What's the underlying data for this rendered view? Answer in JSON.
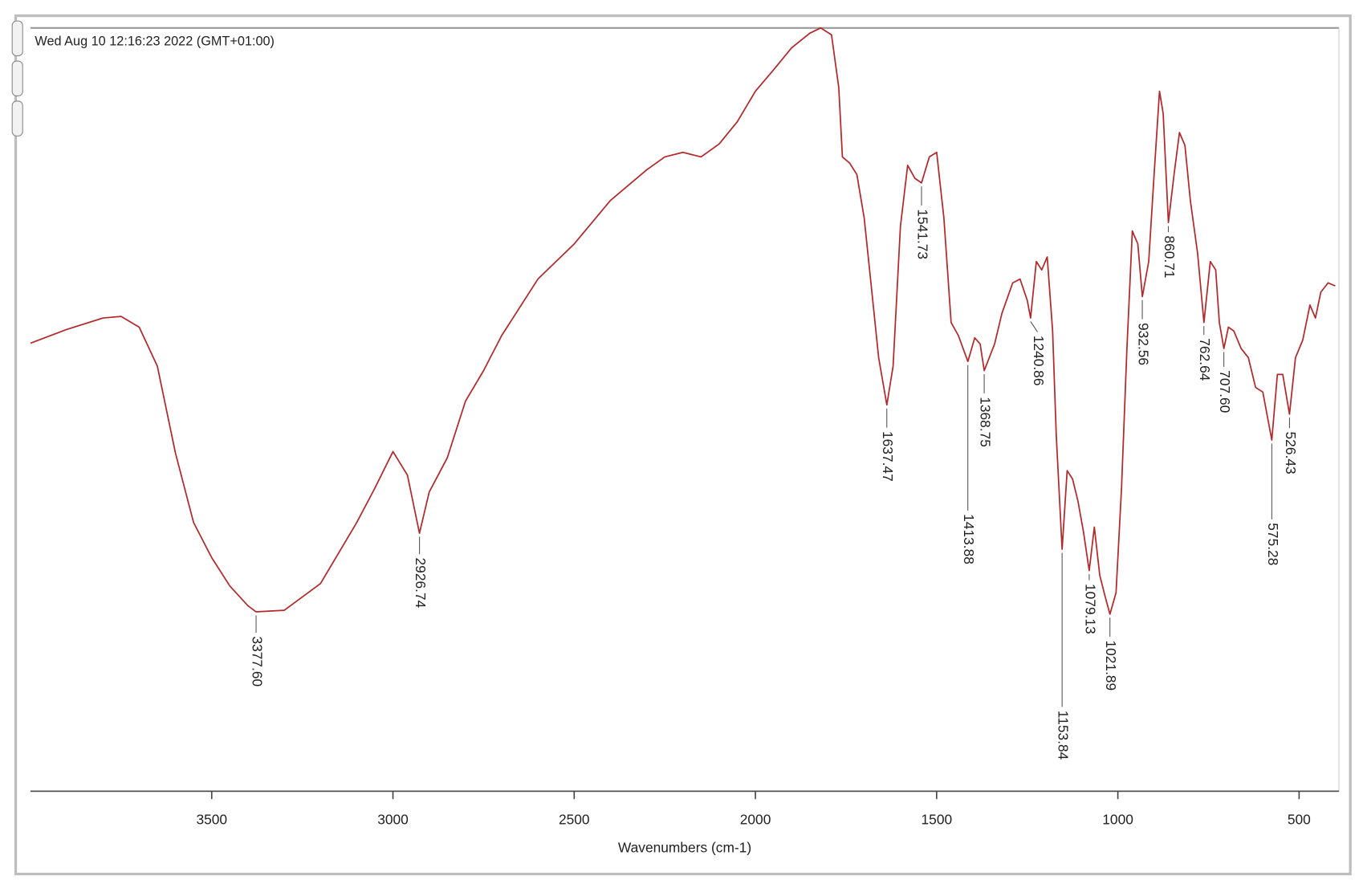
{
  "chart_data": {
    "type": "line",
    "title": "Wed Aug 10 12:16:23 2022 (GMT+01:00)",
    "x_label": "Wavenumbers (cm-1)",
    "color": "#b3292b",
    "xlim": [
      4000,
      390
    ],
    "ylim": [
      0,
      100
    ],
    "xticks": [
      3500,
      3000,
      2500,
      2000,
      1500,
      1000,
      500
    ],
    "x": [
      4000,
      3900,
      3800,
      3750,
      3700,
      3650,
      3600,
      3550,
      3500,
      3450,
      3400,
      3377.6,
      3300,
      3200,
      3100,
      3050,
      3000,
      2960,
      2926.74,
      2900,
      2850,
      2800,
      2750,
      2700,
      2600,
      2500,
      2400,
      2300,
      2250,
      2200,
      2150,
      2100,
      2050,
      2000,
      1950,
      1900,
      1850,
      1820,
      1790,
      1770,
      1760,
      1740,
      1720,
      1700,
      1680,
      1660,
      1637.47,
      1620,
      1600,
      1580,
      1560,
      1541.73,
      1520,
      1500,
      1480,
      1460,
      1440,
      1413.88,
      1395,
      1380,
      1368.75,
      1340,
      1320,
      1290,
      1270,
      1250,
      1240.86,
      1225,
      1210,
      1195,
      1180,
      1170,
      1153.84,
      1140,
      1125,
      1110,
      1095,
      1079.13,
      1065,
      1050,
      1035,
      1021.89,
      1005,
      990,
      975,
      960,
      945,
      932.56,
      915,
      900,
      885,
      875,
      860.71,
      845,
      830,
      815,
      800,
      780,
      762.64,
      745,
      730,
      720,
      707.6,
      695,
      680,
      660,
      640,
      620,
      600,
      575.28,
      560,
      545,
      526.43,
      510,
      490,
      470,
      455,
      440,
      420,
      400
    ],
    "values": [
      58.7,
      60.5,
      62.0,
      62.2,
      60.8,
      55.7,
      44.3,
      35.2,
      30.6,
      26.9,
      24.3,
      23.5,
      23.7,
      27.2,
      35.2,
      39.7,
      44.5,
      41.4,
      33.8,
      39.2,
      43.7,
      51.1,
      55.1,
      59.7,
      67.1,
      71.7,
      77.4,
      81.4,
      83.1,
      83.7,
      83.1,
      84.8,
      87.7,
      91.7,
      94.5,
      97.4,
      99.3,
      100,
      99.1,
      92.2,
      83.1,
      82.3,
      80.8,
      75.1,
      66.0,
      56.8,
      50.6,
      55.7,
      74.0,
      82.0,
      80.3,
      79.7,
      83.1,
      83.7,
      75.1,
      61.4,
      59.7,
      56.3,
      59.4,
      58.6,
      55.1,
      58.6,
      62.6,
      66.6,
      67.1,
      64.3,
      62.0,
      69.4,
      68.3,
      70.0,
      60.3,
      46.6,
      31.7,
      42.0,
      40.9,
      38.0,
      34.0,
      28.9,
      34.6,
      28.3,
      25.5,
      23.2,
      26.0,
      39.7,
      58.0,
      73.4,
      71.7,
      64.8,
      69.4,
      80.8,
      91.7,
      88.8,
      74.5,
      80.8,
      86.3,
      84.6,
      77.4,
      70.5,
      61.4,
      69.4,
      68.3,
      61.4,
      58.0,
      60.8,
      60.3,
      58.0,
      56.8,
      52.9,
      52.3,
      46.0,
      54.6,
      54.6,
      49.4,
      56.8,
      59.1,
      63.7,
      62.0,
      65.4,
      66.6,
      66.2
    ],
    "peaks": [
      {
        "value": 3377.6,
        "label": "3377.60"
      },
      {
        "value": 2926.74,
        "label": "2926.74"
      },
      {
        "value": 1637.47,
        "label": "1637.47"
      },
      {
        "value": 1541.73,
        "label": "1541.73"
      },
      {
        "value": 1413.88,
        "label": "1413.88"
      },
      {
        "value": 1368.75,
        "label": "1368.75"
      },
      {
        "value": 1240.86,
        "label": "1240.86"
      },
      {
        "value": 1153.84,
        "label": "1153.84"
      },
      {
        "value": 1079.13,
        "label": "1079.13"
      },
      {
        "value": 1021.89,
        "label": "1021.89"
      },
      {
        "value": 932.56,
        "label": "932.56"
      },
      {
        "value": 860.71,
        "label": "860.71"
      },
      {
        "value": 762.64,
        "label": "762.64"
      },
      {
        "value": 707.6,
        "label": "707.60"
      },
      {
        "value": 575.28,
        "label": "575.28"
      },
      {
        "value": 526.43,
        "label": "526.43"
      }
    ]
  }
}
